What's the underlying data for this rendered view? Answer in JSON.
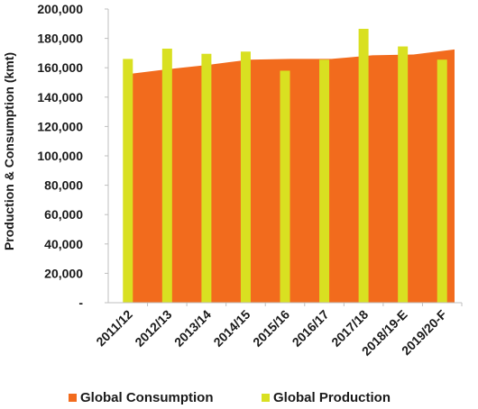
{
  "chart_data": {
    "type": "bar",
    "categories": [
      "2011/12",
      "2012/13",
      "2013/14",
      "2014/15",
      "2015/16",
      "2016/17",
      "2017/18",
      "2018/19-E",
      "2019/20-F"
    ],
    "series": [
      {
        "name": "Global Consumption",
        "render": "area",
        "color": "#f26b1d",
        "values": [
          155500,
          159000,
          162000,
          165500,
          166000,
          166000,
          168500,
          169000,
          172500
        ]
      },
      {
        "name": "Global Production",
        "render": "bar",
        "color": "#d9e021",
        "values": [
          166000,
          173000,
          169500,
          171000,
          158000,
          165500,
          186500,
          174500,
          165500
        ]
      }
    ],
    "ylabel": "Production & Consumption (kmt)",
    "ylim": [
      0,
      200000
    ],
    "yticks": [
      {
        "value": 0,
        "label": "-"
      },
      {
        "value": 20000,
        "label": "20,000"
      },
      {
        "value": 40000,
        "label": "40,000"
      },
      {
        "value": 60000,
        "label": "60,000"
      },
      {
        "value": 80000,
        "label": "80,000"
      },
      {
        "value": 100000,
        "label": "100,000"
      },
      {
        "value": 120000,
        "label": "120,000"
      },
      {
        "value": 140000,
        "label": "140,000"
      },
      {
        "value": 160000,
        "label": "160,000"
      },
      {
        "value": 180000,
        "label": "180,000"
      },
      {
        "value": 200000,
        "label": "200,000"
      }
    ],
    "grid": false,
    "legend": "bottom"
  }
}
